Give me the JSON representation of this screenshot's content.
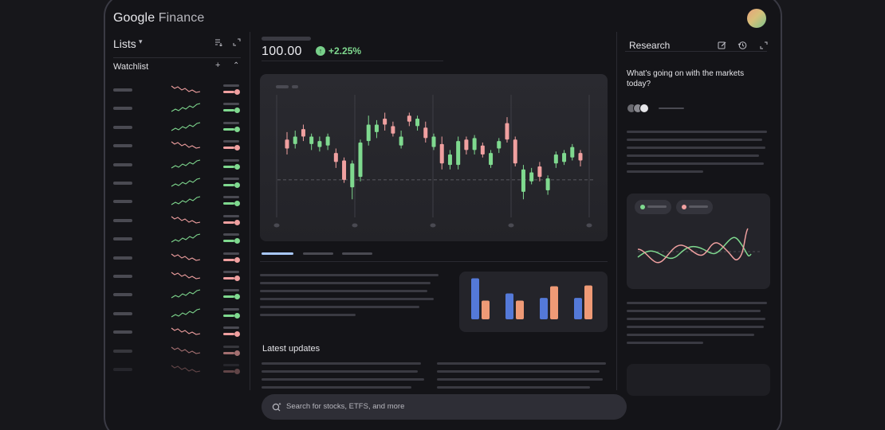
{
  "app": {
    "brand_google": "Google",
    "brand_product": " Finance"
  },
  "left_panel": {
    "lists_label": "Lists",
    "lists_caret": "▾",
    "watchlist_label": "Watchlist",
    "add_symbol": "+",
    "collapse_symbol": "⌃",
    "rows": [
      {
        "trend": "down"
      },
      {
        "trend": "up"
      },
      {
        "trend": "up"
      },
      {
        "trend": "down"
      },
      {
        "trend": "up"
      },
      {
        "trend": "up"
      },
      {
        "trend": "up"
      },
      {
        "trend": "down"
      },
      {
        "trend": "up"
      },
      {
        "trend": "down"
      },
      {
        "trend": "down"
      },
      {
        "trend": "up"
      },
      {
        "trend": "up"
      },
      {
        "trend": "down"
      },
      {
        "trend": "down"
      },
      {
        "trend": "down"
      }
    ]
  },
  "quote": {
    "price": "100.00",
    "change": "+2.25%",
    "direction": "up"
  },
  "chart_data": {
    "type": "candlestick",
    "candles": [
      {
        "o": 54,
        "c": 60,
        "h": 65,
        "l": 50,
        "up": false
      },
      {
        "o": 57,
        "c": 62,
        "h": 66,
        "l": 54,
        "up": true
      },
      {
        "o": 62,
        "c": 67,
        "h": 70,
        "l": 59,
        "up": false
      },
      {
        "o": 57,
        "c": 62,
        "h": 64,
        "l": 53,
        "up": true
      },
      {
        "o": 55,
        "c": 59,
        "h": 62,
        "l": 52,
        "up": true
      },
      {
        "o": 56,
        "c": 62,
        "h": 64,
        "l": 53,
        "up": true
      },
      {
        "o": 45,
        "c": 51,
        "h": 54,
        "l": 41,
        "up": false
      },
      {
        "o": 33,
        "c": 46,
        "h": 48,
        "l": 31,
        "up": false
      },
      {
        "o": 28,
        "c": 44,
        "h": 46,
        "l": 20,
        "up": true
      },
      {
        "o": 35,
        "c": 58,
        "h": 60,
        "l": 32,
        "up": true
      },
      {
        "o": 59,
        "c": 70,
        "h": 76,
        "l": 56,
        "up": true
      },
      {
        "o": 65,
        "c": 70,
        "h": 73,
        "l": 61,
        "up": true
      },
      {
        "o": 70,
        "c": 74,
        "h": 78,
        "l": 66,
        "up": false
      },
      {
        "o": 64,
        "c": 69,
        "h": 72,
        "l": 62,
        "up": false
      },
      {
        "o": 56,
        "c": 62,
        "h": 66,
        "l": 54,
        "up": true
      },
      {
        "o": 72,
        "c": 76,
        "h": 78,
        "l": 69,
        "up": false
      },
      {
        "o": 69,
        "c": 74,
        "h": 76,
        "l": 66,
        "up": true
      },
      {
        "o": 61,
        "c": 68,
        "h": 72,
        "l": 58,
        "up": false
      },
      {
        "o": 55,
        "c": 62,
        "h": 64,
        "l": 53,
        "up": true
      },
      {
        "o": 44,
        "c": 57,
        "h": 62,
        "l": 40,
        "up": false
      },
      {
        "o": 43,
        "c": 50,
        "h": 53,
        "l": 40,
        "up": true
      },
      {
        "o": 43,
        "c": 59,
        "h": 62,
        "l": 40,
        "up": true
      },
      {
        "o": 53,
        "c": 60,
        "h": 62,
        "l": 50,
        "up": false
      },
      {
        "o": 53,
        "c": 61,
        "h": 63,
        "l": 50,
        "up": true
      },
      {
        "o": 50,
        "c": 56,
        "h": 58,
        "l": 48,
        "up": false
      },
      {
        "o": 43,
        "c": 51,
        "h": 53,
        "l": 41,
        "up": true
      },
      {
        "o": 54,
        "c": 59,
        "h": 61,
        "l": 51,
        "up": true
      },
      {
        "o": 60,
        "c": 71,
        "h": 75,
        "l": 58,
        "up": false
      },
      {
        "o": 44,
        "c": 60,
        "h": 62,
        "l": 42,
        "up": false
      },
      {
        "o": 25,
        "c": 40,
        "h": 43,
        "l": 20,
        "up": true
      },
      {
        "o": 32,
        "c": 38,
        "h": 41,
        "l": 30,
        "up": true
      },
      {
        "o": 35,
        "c": 42,
        "h": 45,
        "l": 32,
        "up": false
      },
      {
        "o": 26,
        "c": 34,
        "h": 36,
        "l": 23,
        "up": true
      },
      {
        "o": 44,
        "c": 50,
        "h": 52,
        "l": 41,
        "up": true
      },
      {
        "o": 45,
        "c": 51,
        "h": 53,
        "l": 43,
        "up": true
      },
      {
        "o": 48,
        "c": 55,
        "h": 57,
        "l": 46,
        "up": true
      },
      {
        "o": 46,
        "c": 51,
        "h": 53,
        "l": 42,
        "up": false
      }
    ],
    "reference_level": 33,
    "ylim": [
      10,
      90
    ]
  },
  "bar_chart": {
    "type": "bar",
    "groups": [
      {
        "blue": 0.92,
        "orange": 0.42
      },
      {
        "blue": 0.58,
        "orange": 0.42
      },
      {
        "blue": 0.48,
        "orange": 0.74
      },
      {
        "blue": 0.48,
        "orange": 0.76
      }
    ]
  },
  "latest_updates": "Latest updates",
  "search": {
    "placeholder": "Search for stocks, ETFS, and more"
  },
  "research": {
    "title": "Research",
    "question": "What’s going on with the markets today?"
  },
  "colors": {
    "up": "#7fd98f",
    "down": "#f0a0a0",
    "bar_blue": "#5479d8",
    "bar_orange": "#ef9a76"
  }
}
